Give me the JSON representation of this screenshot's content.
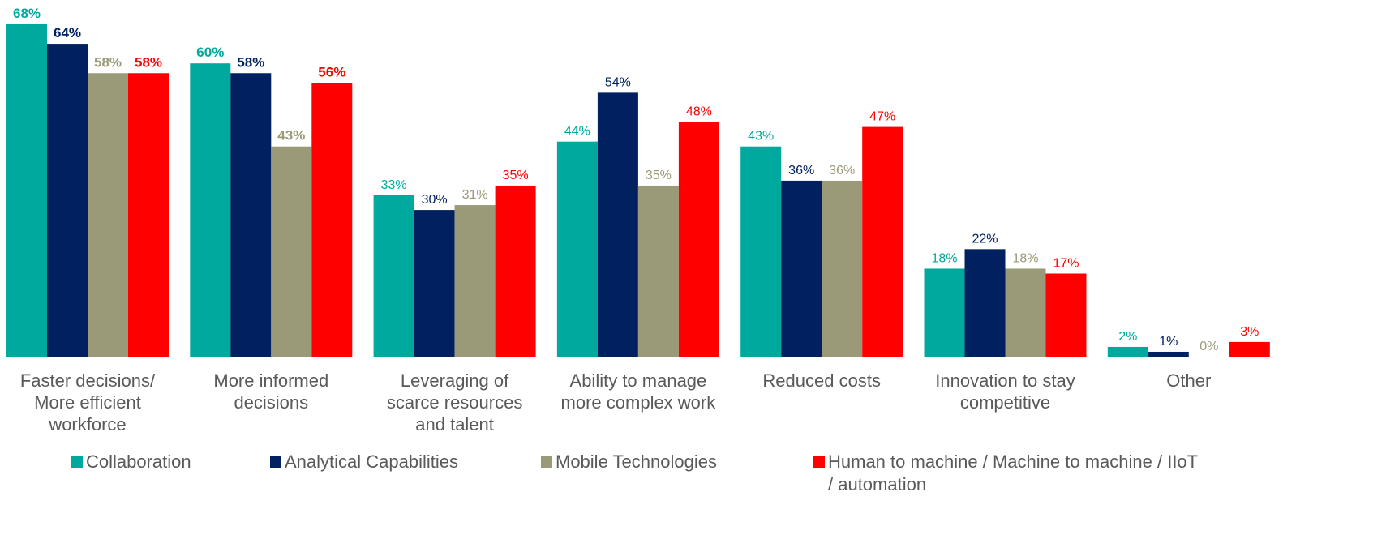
{
  "chart_data": {
    "type": "bar",
    "categories": [
      [
        "Faster decisions/",
        "More efficient",
        "workforce"
      ],
      [
        "More informed",
        "decisions"
      ],
      [
        "Leveraging of",
        "scarce resources",
        "and talent"
      ],
      [
        "Ability to manage",
        "more complex work"
      ],
      [
        "Reduced costs"
      ],
      [
        "Innovation to stay",
        "competitive"
      ],
      [
        "Other"
      ]
    ],
    "label_bold": [
      true,
      true,
      false,
      false,
      false,
      false,
      false
    ],
    "series": [
      {
        "name": "Collaboration",
        "color": "#00a99d",
        "values": [
          68,
          60,
          33,
          44,
          43,
          18,
          2
        ],
        "value_labels": [
          "68%",
          "60%",
          "33%",
          "44%",
          "43%",
          "18%",
          "2%"
        ]
      },
      {
        "name": "Analytical Capabilities",
        "color": "#002060",
        "values": [
          64,
          58,
          30,
          54,
          36,
          22,
          1
        ],
        "value_labels": [
          "64%",
          "58%",
          "30%",
          "54%",
          "36%",
          "22%",
          "1%"
        ]
      },
      {
        "name": "Mobile Technologies",
        "color": "#9b9a78",
        "values": [
          58,
          43,
          31,
          35,
          36,
          18,
          0
        ],
        "value_labels": [
          "58%",
          "43%",
          "31%",
          "35%",
          "36%",
          "18%",
          "0%"
        ]
      },
      {
        "name": "Human to machine / Machine to machine / IIoT / automation",
        "color": "#ff0000",
        "values": [
          58,
          56,
          35,
          48,
          47,
          17,
          3
        ],
        "value_labels": [
          "58%",
          "56%",
          "35%",
          "48%",
          "47%",
          "17%",
          "3%"
        ]
      }
    ]
  }
}
